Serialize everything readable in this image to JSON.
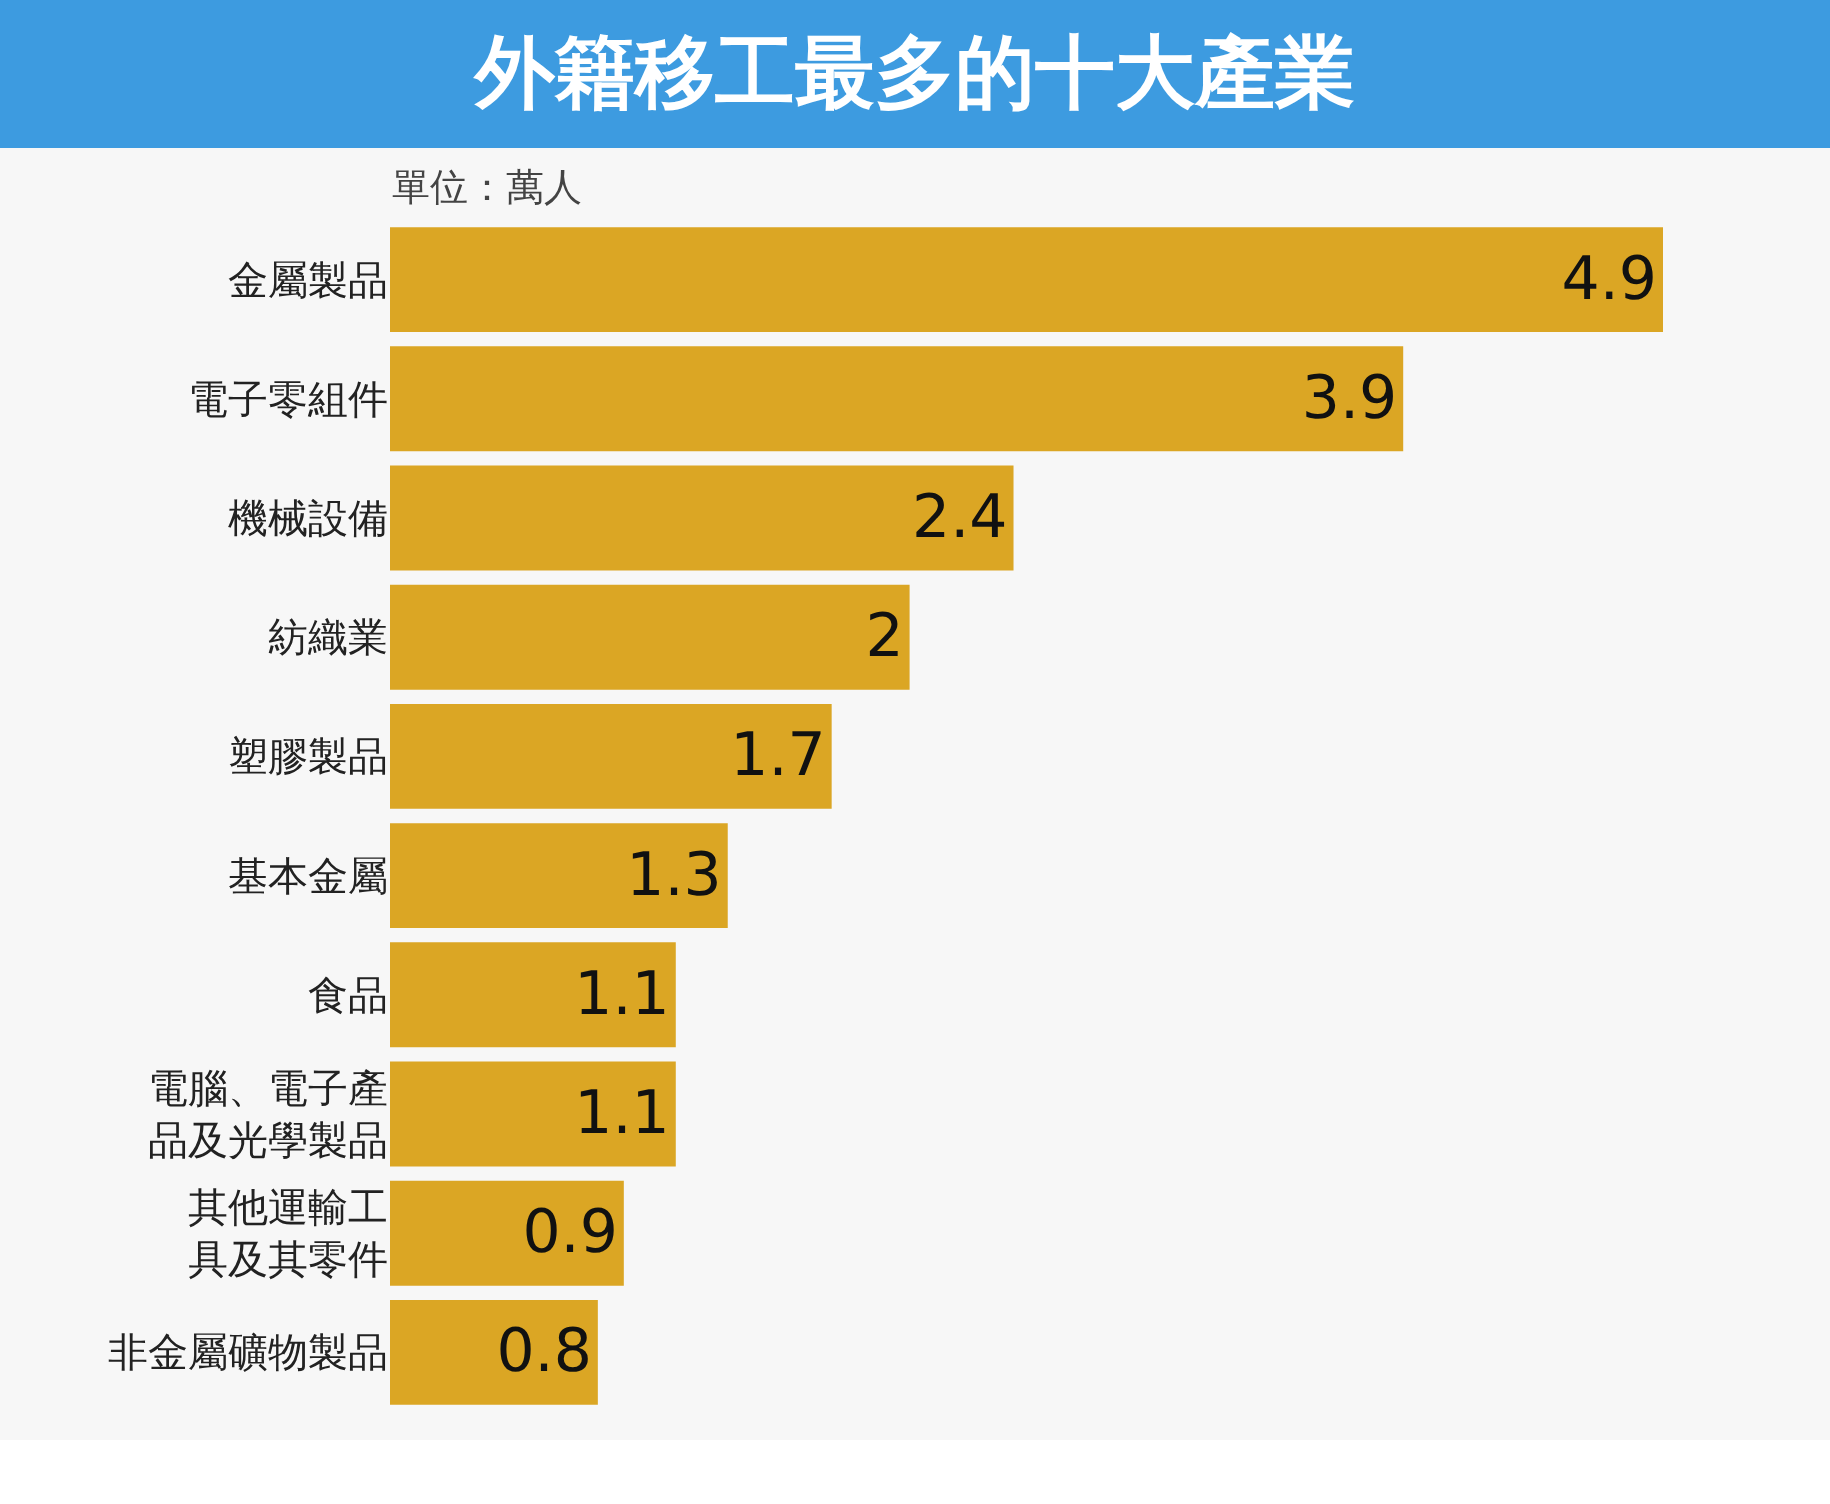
{
  "chart_data": {
    "type": "bar",
    "orientation": "horizontal",
    "title": "外籍移工最多的十大產業",
    "subtitle": "單位：萬人",
    "categories": [
      "金屬製品",
      "電子零組件",
      "機械設備",
      "紡織業",
      "塑膠製品",
      "基本金屬",
      "食品",
      "電腦、電子產品及光學製品",
      "其他運輸工具及其零件",
      "非金屬礦物製品"
    ],
    "values": [
      4.9,
      3.9,
      2.4,
      2,
      1.7,
      1.3,
      1.1,
      1.1,
      0.9,
      0.8
    ],
    "color": "#dba624",
    "data_labels": true
  }
}
